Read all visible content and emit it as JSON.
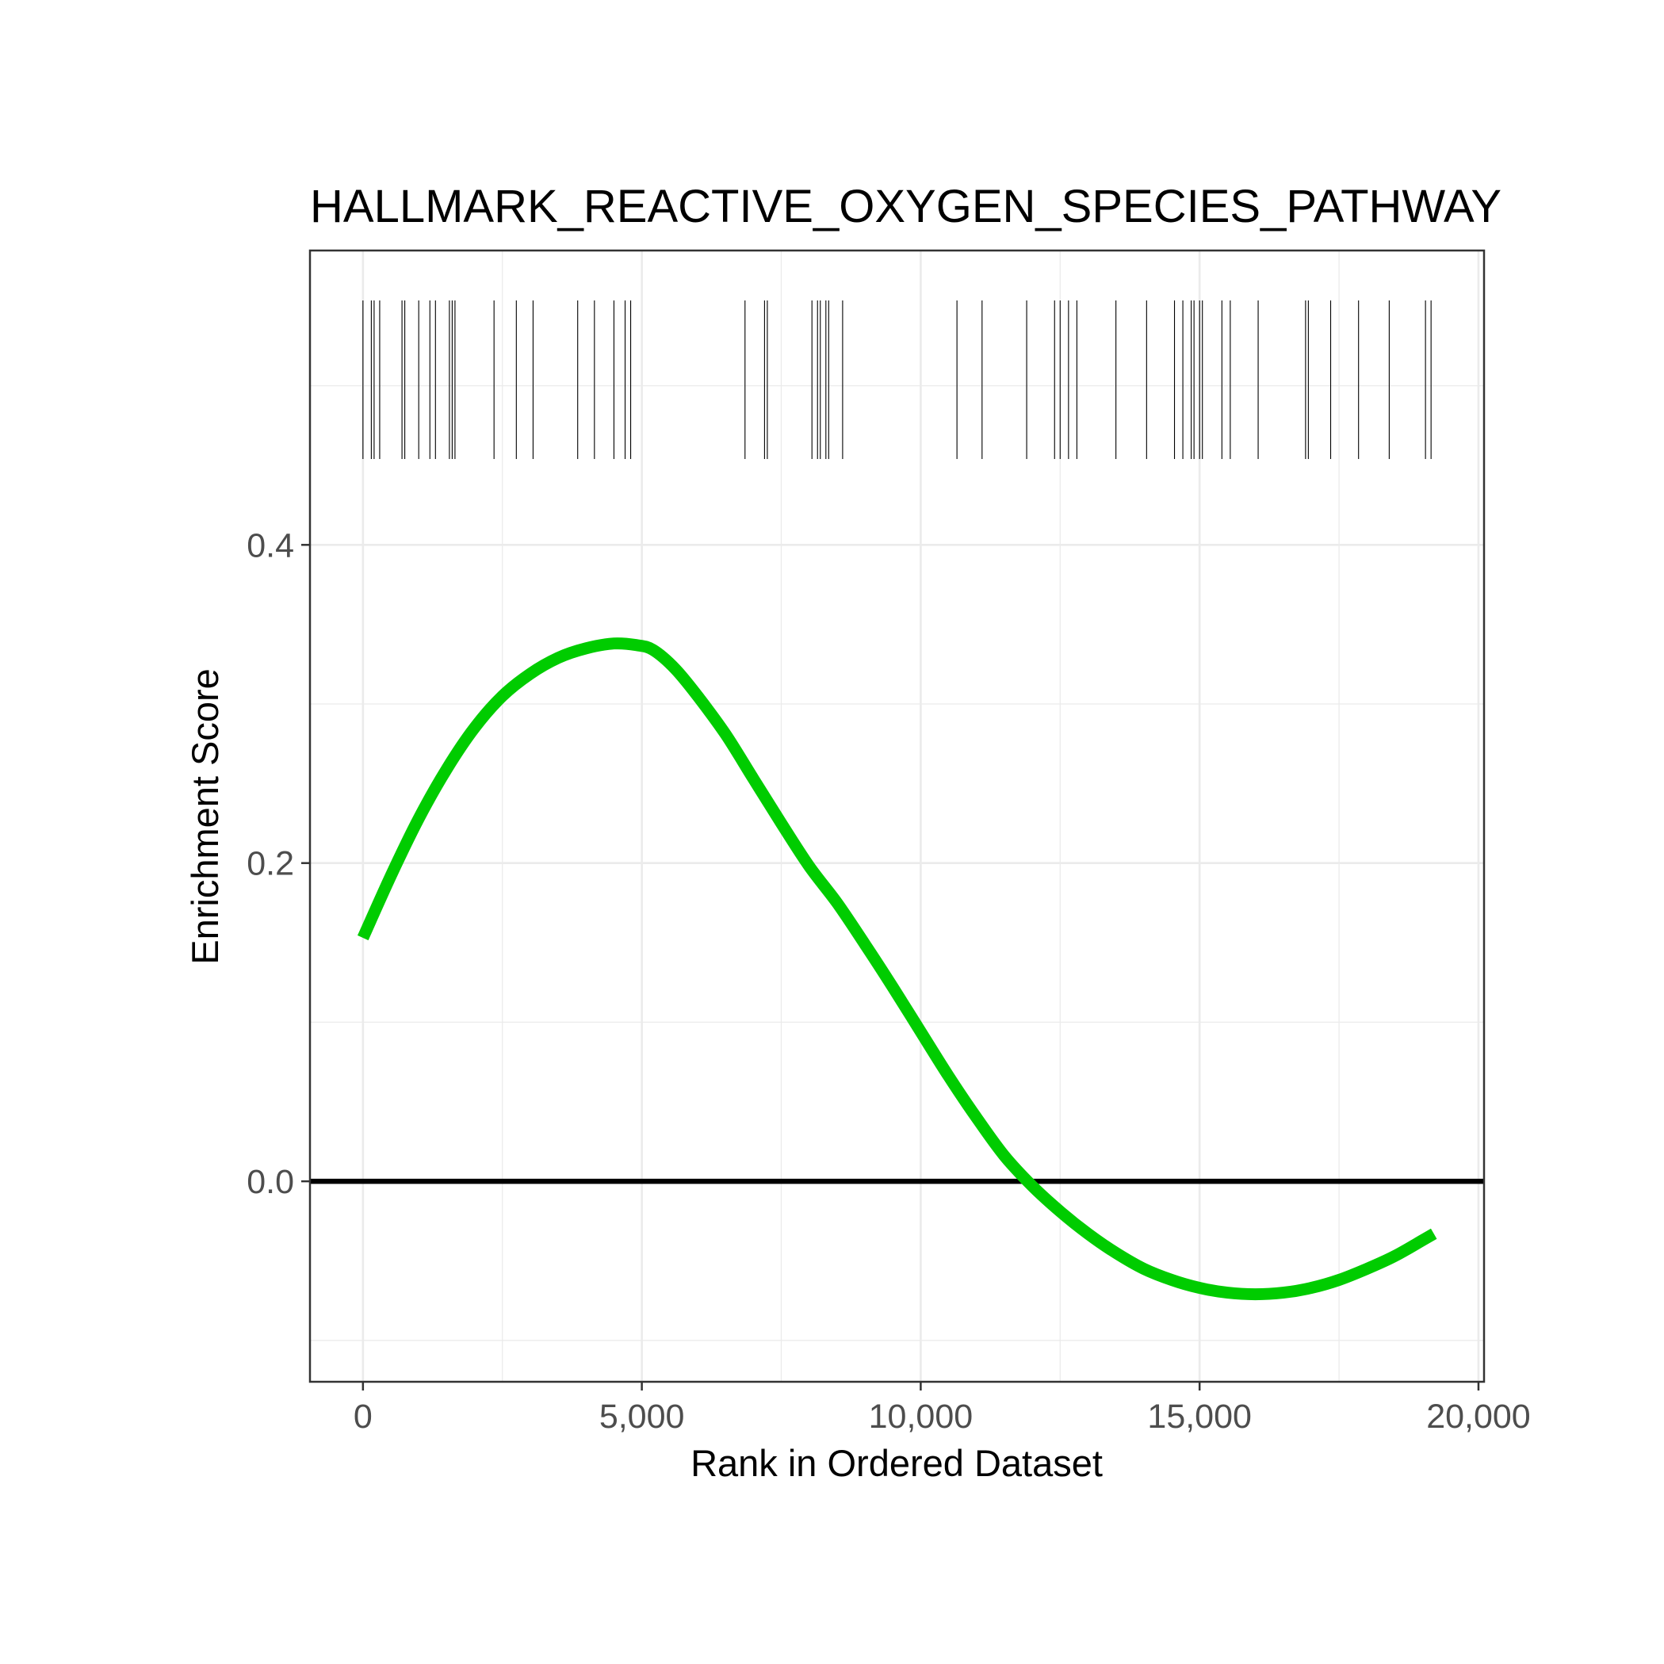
{
  "chart_data": {
    "type": "line",
    "title": "HALLMARK_REACTIVE_OXYGEN_SPECIES_PATHWAY",
    "xlabel": "Rank in Ordered Dataset",
    "ylabel": "Enrichment Score",
    "xlim": [
      -950,
      20100
    ],
    "ylim": [
      -0.126,
      0.585
    ],
    "x_ticks": [
      0,
      5000,
      10000,
      15000,
      20000
    ],
    "x_tick_labels": [
      "0",
      "5,000",
      "10,000",
      "15,000",
      "20,000"
    ],
    "y_ticks": [
      0.0,
      0.2,
      0.4
    ],
    "y_tick_labels": [
      "0.0",
      "0.2",
      "0.4"
    ],
    "grid": true,
    "colors": {
      "curve": "#00cc00",
      "zero_line": "#000000",
      "hits": "#000000",
      "grid": "#ebebeb",
      "panel_border": "#333333"
    },
    "series": [
      {
        "x": [
          0,
          500,
          1000,
          1500,
          2000,
          2500,
          3000,
          3500,
          4000,
          4500,
          4900,
          5200,
          5600,
          6000,
          6500,
          7000,
          7500,
          8000,
          8500,
          9000,
          9500,
          10000,
          10500,
          11000,
          11500,
          12000,
          12500,
          13000,
          13500,
          14000,
          14500,
          15000,
          15500,
          16000,
          16500,
          17000,
          17500,
          18000,
          18500,
          19000,
          19200
        ],
        "y": [
          0.153,
          0.192,
          0.228,
          0.259,
          0.285,
          0.305,
          0.319,
          0.329,
          0.335,
          0.338,
          0.337,
          0.334,
          0.322,
          0.305,
          0.281,
          0.253,
          0.225,
          0.198,
          0.175,
          0.149,
          0.122,
          0.094,
          0.066,
          0.04,
          0.016,
          -0.003,
          -0.019,
          -0.033,
          -0.045,
          -0.055,
          -0.062,
          -0.067,
          -0.07,
          -0.071,
          -0.07,
          -0.067,
          -0.062,
          -0.055,
          -0.047,
          -0.037,
          -0.033
        ]
      }
    ],
    "hits": [
      0,
      150,
      200,
      300,
      700,
      750,
      1000,
      1200,
      1300,
      1550,
      1600,
      1650,
      2350,
      2750,
      3050,
      3850,
      4150,
      4500,
      4700,
      4800,
      6850,
      7200,
      7250,
      8050,
      8150,
      8200,
      8300,
      8350,
      8600,
      10650,
      11100,
      11900,
      12400,
      12500,
      12650,
      12800,
      13500,
      14050,
      14550,
      14700,
      14850,
      14900,
      15000,
      15050,
      15400,
      15550,
      16050,
      16900,
      16950,
      17350,
      17850,
      18400,
      19050,
      19150
    ]
  }
}
